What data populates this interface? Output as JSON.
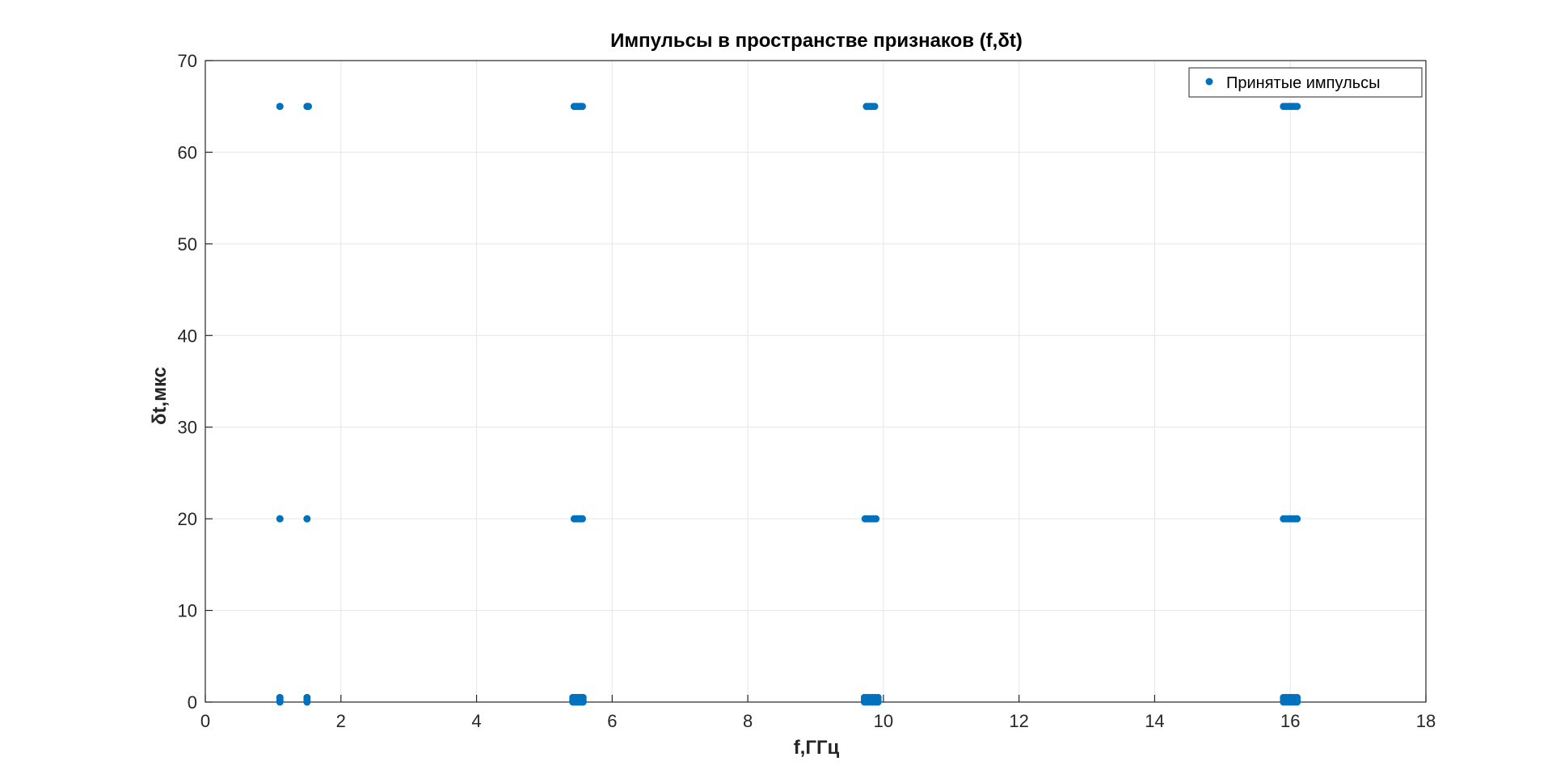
{
  "chart_data": {
    "type": "scatter",
    "title": "Импульсы в пространстве признаков (f,δt)",
    "xlabel": "f,ГГц",
    "ylabel": "δt,мкс",
    "xlim": [
      0,
      18
    ],
    "ylim": [
      0,
      70
    ],
    "xticks": [
      "0",
      "2",
      "4",
      "6",
      "8",
      "10",
      "12",
      "14",
      "16",
      "18"
    ],
    "yticks": [
      "0",
      "10",
      "20",
      "30",
      "40",
      "50",
      "60",
      "70"
    ],
    "grid": true,
    "legend_position": "top-right",
    "marker_color": "#0072BD",
    "series": [
      {
        "name": "Принятые импульсы",
        "points": [
          [
            1.1,
            65
          ],
          [
            1.5,
            65
          ],
          [
            1.52,
            65
          ],
          [
            1.1,
            20
          ],
          [
            1.5,
            20
          ],
          [
            1.1,
            0.5
          ],
          [
            1.1,
            0.2
          ],
          [
            1.1,
            0.0
          ],
          [
            1.5,
            0.5
          ],
          [
            1.5,
            0.2
          ],
          [
            1.5,
            0.0
          ],
          [
            5.44,
            65
          ],
          [
            5.47,
            65
          ],
          [
            5.5,
            65
          ],
          [
            5.53,
            65
          ],
          [
            5.56,
            65
          ],
          [
            5.44,
            20
          ],
          [
            5.47,
            20
          ],
          [
            5.5,
            20
          ],
          [
            5.53,
            20
          ],
          [
            5.56,
            20
          ],
          [
            5.42,
            0.5
          ],
          [
            5.45,
            0.5
          ],
          [
            5.48,
            0.5
          ],
          [
            5.51,
            0.5
          ],
          [
            5.54,
            0.5
          ],
          [
            5.57,
            0.5
          ],
          [
            5.42,
            0.2
          ],
          [
            5.45,
            0.2
          ],
          [
            5.48,
            0.2
          ],
          [
            5.51,
            0.2
          ],
          [
            5.54,
            0.2
          ],
          [
            5.57,
            0.2
          ],
          [
            5.42,
            0.0
          ],
          [
            5.45,
            0.0
          ],
          [
            5.48,
            0.0
          ],
          [
            5.51,
            0.0
          ],
          [
            5.54,
            0.0
          ],
          [
            5.57,
            0.0
          ],
          [
            9.75,
            65
          ],
          [
            9.79,
            65
          ],
          [
            9.83,
            65
          ],
          [
            9.87,
            65
          ],
          [
            9.73,
            20
          ],
          [
            9.77,
            20
          ],
          [
            9.81,
            20
          ],
          [
            9.85,
            20
          ],
          [
            9.89,
            20
          ],
          [
            9.72,
            0.5
          ],
          [
            9.76,
            0.5
          ],
          [
            9.8,
            0.5
          ],
          [
            9.84,
            0.5
          ],
          [
            9.88,
            0.5
          ],
          [
            9.92,
            0.5
          ],
          [
            9.72,
            0.2
          ],
          [
            9.76,
            0.2
          ],
          [
            9.8,
            0.2
          ],
          [
            9.84,
            0.2
          ],
          [
            9.88,
            0.2
          ],
          [
            9.92,
            0.2
          ],
          [
            9.72,
            0.0
          ],
          [
            9.76,
            0.0
          ],
          [
            9.8,
            0.0
          ],
          [
            9.84,
            0.0
          ],
          [
            9.88,
            0.0
          ],
          [
            9.92,
            0.0
          ],
          [
            15.9,
            65
          ],
          [
            15.94,
            65
          ],
          [
            15.98,
            65
          ],
          [
            16.02,
            65
          ],
          [
            16.06,
            65
          ],
          [
            16.1,
            65
          ],
          [
            15.9,
            20
          ],
          [
            15.94,
            20
          ],
          [
            15.98,
            20
          ],
          [
            16.02,
            20
          ],
          [
            16.06,
            20
          ],
          [
            16.1,
            20
          ],
          [
            15.9,
            0.5
          ],
          [
            15.94,
            0.5
          ],
          [
            15.98,
            0.5
          ],
          [
            16.02,
            0.5
          ],
          [
            16.06,
            0.5
          ],
          [
            16.1,
            0.5
          ],
          [
            15.9,
            0.2
          ],
          [
            15.94,
            0.2
          ],
          [
            15.98,
            0.2
          ],
          [
            16.02,
            0.2
          ],
          [
            16.06,
            0.2
          ],
          [
            16.1,
            0.2
          ],
          [
            15.9,
            0.0
          ],
          [
            15.94,
            0.0
          ],
          [
            15.98,
            0.0
          ],
          [
            16.02,
            0.0
          ],
          [
            16.06,
            0.0
          ],
          [
            16.1,
            0.0
          ]
        ]
      }
    ]
  }
}
